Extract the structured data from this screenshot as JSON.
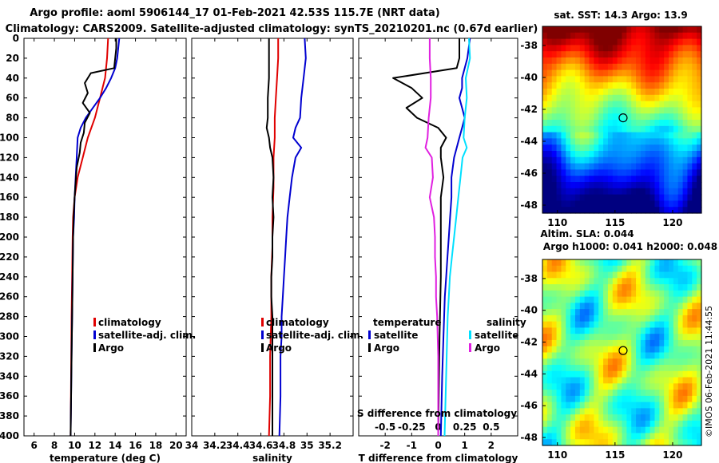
{
  "title_line1": "Argo profile: aoml 5906144_17 01-Feb-2021 42.53S 115.7E (NRT data)",
  "title_line2": "Climatology: CARS2009. Satellite-adjusted climatology: synTS_20210201.nc (0.67d earlier)",
  "colors": {
    "clim": "#e00000",
    "sat": "#0000d0",
    "argo": "#000000",
    "sat_s": "#00e0ff",
    "clim_s": "#e020e0"
  },
  "chart_data": [
    {
      "type": "line",
      "panel": "temperature",
      "xlabel": "temperature (deg C)",
      "xlim": [
        5,
        21
      ],
      "xticks": [
        "6",
        "8",
        "10",
        "12",
        "14",
        "16",
        "18",
        "20"
      ],
      "xtick_values": [
        6,
        8,
        10,
        12,
        14,
        16,
        18,
        20
      ],
      "ylim": [
        0,
        400
      ],
      "yticks": [
        "0",
        "20",
        "40",
        "60",
        "80",
        "100",
        "120",
        "140",
        "160",
        "180",
        "200",
        "220",
        "240",
        "260",
        "280",
        "300",
        "320",
        "340",
        "360",
        "380",
        "400"
      ],
      "ytick_values": [
        0,
        20,
        40,
        60,
        80,
        100,
        120,
        140,
        160,
        180,
        200,
        220,
        240,
        260,
        280,
        300,
        320,
        340,
        360,
        380,
        400
      ],
      "legend": [
        "climatology",
        "satellite-adj. clim.",
        "Argo"
      ],
      "series": [
        {
          "name": "climatology",
          "color_key": "clim",
          "x": [
            13.3,
            13.2,
            13.0,
            12.5,
            12.0,
            11.3,
            10.8,
            10.3,
            10.0,
            9.85,
            9.8,
            9.75,
            9.7,
            9.65,
            9.6
          ],
          "y": [
            0,
            20,
            40,
            60,
            80,
            100,
            120,
            140,
            160,
            180,
            200,
            240,
            280,
            340,
            400
          ]
        },
        {
          "name": "satellite-adj. clim.",
          "color_key": "sat",
          "x": [
            14.4,
            14.3,
            14.2,
            14.0,
            13.6,
            13.1,
            12.5,
            11.8,
            11.1,
            10.6,
            10.3,
            10.2,
            10.1,
            10.0,
            9.95,
            9.85,
            9.8,
            9.75,
            9.7,
            9.65,
            9.6
          ],
          "y": [
            0,
            10,
            20,
            30,
            40,
            50,
            60,
            70,
            80,
            90,
            100,
            120,
            140,
            160,
            180,
            200,
            240,
            280,
            320,
            360,
            400
          ]
        },
        {
          "name": "Argo",
          "color_key": "argo",
          "x": [
            14.1,
            14.1,
            14.0,
            13.9,
            11.6,
            11.0,
            11.3,
            10.8,
            11.5,
            11.0,
            10.9,
            10.6,
            10.5,
            10.2,
            10.1,
            10.0,
            9.9,
            9.85,
            9.8,
            9.75,
            9.7,
            9.65,
            9.6
          ],
          "y": [
            0,
            10,
            20,
            30,
            35,
            45,
            55,
            65,
            75,
            85,
            95,
            105,
            115,
            130,
            145,
            160,
            180,
            200,
            240,
            280,
            320,
            360,
            400
          ]
        }
      ]
    },
    {
      "type": "line",
      "panel": "salinity",
      "xlabel": "salinity",
      "xlim": [
        34.0,
        35.4
      ],
      "xticks": [
        "34",
        "34.2",
        "34.4",
        "34.6",
        "34.8",
        "35",
        "35.2"
      ],
      "xtick_values": [
        34.0,
        34.2,
        34.4,
        34.6,
        34.8,
        35.0,
        35.2
      ],
      "ylim": [
        0,
        400
      ],
      "legend": [
        "climatology",
        "satellite-adj. clim.",
        "Argo"
      ],
      "series": [
        {
          "name": "climatology",
          "color_key": "clim",
          "x": [
            34.75,
            34.75,
            34.74,
            34.73,
            34.72,
            34.72,
            34.71,
            34.71,
            34.7,
            34.7,
            34.69,
            34.69,
            34.68,
            34.68,
            34.67
          ],
          "y": [
            0,
            20,
            40,
            60,
            80,
            100,
            120,
            150,
            180,
            210,
            240,
            280,
            320,
            360,
            400
          ]
        },
        {
          "name": "satellite-adj. clim.",
          "color_key": "sat",
          "x": [
            34.98,
            34.99,
            34.97,
            34.95,
            34.94,
            34.9,
            34.88,
            34.95,
            34.9,
            34.87,
            34.85,
            34.83,
            34.82,
            34.81,
            34.8,
            34.79,
            34.78,
            34.78,
            34.77,
            34.77,
            34.76
          ],
          "y": [
            0,
            20,
            40,
            60,
            80,
            90,
            100,
            110,
            120,
            140,
            160,
            180,
            200,
            220,
            240,
            260,
            280,
            300,
            320,
            360,
            400
          ]
        },
        {
          "name": "Argo",
          "color_key": "argo",
          "x": [
            34.67,
            34.67,
            34.67,
            34.66,
            34.66,
            34.65,
            34.67,
            34.68,
            34.7,
            34.71,
            34.7,
            34.71,
            34.7,
            34.7,
            34.69,
            34.69,
            34.7,
            34.7,
            34.7,
            34.7,
            34.7,
            34.7
          ],
          "y": [
            0,
            20,
            40,
            60,
            80,
            90,
            100,
            110,
            120,
            140,
            160,
            180,
            200,
            220,
            240,
            260,
            280,
            300,
            320,
            340,
            370,
            400
          ]
        }
      ]
    },
    {
      "type": "line",
      "panel": "differences",
      "xlabel": "T difference from climatology",
      "xlabel_top": "S difference from climatology",
      "xlim": [
        -3,
        3
      ],
      "xticks": [
        "-2",
        "-1",
        "0",
        "1",
        "2"
      ],
      "xtick_values": [
        -2,
        -1,
        0,
        1,
        2
      ],
      "sticks": [
        "-0.5",
        "-0.25",
        "0",
        "0.25",
        "0.5"
      ],
      "stick_values": [
        -0.5,
        -0.25,
        0,
        0.25,
        0.5
      ],
      "ylim": [
        0,
        400
      ],
      "legend_t_title": "temperature",
      "legend_s_title": "salinity",
      "legend_t": [
        "satellite",
        "Argo"
      ],
      "legend_s": [
        "satellite",
        "Argo"
      ],
      "series": [
        {
          "name": "temperature satellite",
          "color_key": "sat",
          "x": [
            1.2,
            1.1,
            1.0,
            0.9,
            0.9,
            0.8,
            0.9,
            1.0,
            0.9,
            0.8,
            0.7,
            0.6,
            0.5,
            0.5,
            0.45,
            0.4,
            0.35,
            0.3,
            0.25,
            0.2,
            0.15,
            0.1
          ],
          "y": [
            0,
            20,
            30,
            40,
            50,
            60,
            70,
            80,
            90,
            100,
            110,
            120,
            140,
            160,
            180,
            200,
            220,
            240,
            260,
            300,
            340,
            400
          ]
        },
        {
          "name": "temperature Argo",
          "color_key": "argo",
          "x": [
            0.8,
            0.8,
            0.7,
            -1.7,
            -1.0,
            -0.6,
            -1.2,
            -0.8,
            0.0,
            0.3,
            0.1,
            0.1,
            0.2,
            0.1,
            0.1,
            0.1,
            0.1,
            0.05,
            0.0
          ],
          "y": [
            0,
            20,
            30,
            40,
            50,
            60,
            70,
            80,
            90,
            100,
            110,
            120,
            140,
            160,
            180,
            200,
            240,
            300,
            400
          ]
        },
        {
          "name": "salinity satellite",
          "color_key": "sat_s",
          "x": [
            0.29,
            0.3,
            0.26,
            0.27,
            0.25,
            0.24,
            0.27,
            0.23,
            0.21,
            0.19,
            0.17,
            0.15,
            0.13,
            0.11,
            0.1,
            0.09,
            0.08,
            0.07,
            0.06
          ],
          "y": [
            0,
            20,
            40,
            60,
            80,
            100,
            110,
            120,
            140,
            160,
            180,
            200,
            220,
            240,
            260,
            280,
            320,
            360,
            400
          ]
        },
        {
          "name": "salinity Argo",
          "color_key": "clim_s",
          "x": [
            -0.08,
            -0.08,
            -0.07,
            -0.07,
            -0.09,
            -0.1,
            -0.12,
            -0.06,
            -0.05,
            -0.08,
            -0.04,
            -0.03,
            -0.03,
            -0.02,
            -0.02,
            -0.01,
            0.0,
            0.0,
            0.0
          ],
          "y": [
            0,
            20,
            40,
            60,
            80,
            100,
            110,
            120,
            140,
            160,
            180,
            200,
            220,
            240,
            260,
            280,
            320,
            360,
            400
          ]
        }
      ]
    },
    {
      "type": "heatmap",
      "panel": "sst_map",
      "title": "sat. SST: 14.3 Argo: 13.9",
      "xticks": [
        "110",
        "115",
        "120"
      ],
      "xtick_values": [
        110,
        115,
        120
      ],
      "yticks": [
        "-38",
        "-40",
        "-42",
        "-44",
        "-46",
        "-48"
      ],
      "ytick_values": [
        -38,
        -40,
        -42,
        -44,
        -46,
        -48
      ],
      "xlim": [
        108.7,
        122.5
      ],
      "ylim": [
        -36.8,
        -48.5
      ],
      "marker": {
        "lon": 115.7,
        "lat": -42.53
      }
    },
    {
      "type": "heatmap",
      "panel": "sla_map",
      "title": "Altim. SLA: 0.044",
      "subtitle": "Argo h1000: 0.041 h2000: 0.048",
      "xticks": [
        "110",
        "115",
        "120"
      ],
      "xtick_values": [
        110,
        115,
        120
      ],
      "yticks": [
        "-38",
        "-40",
        "-42",
        "-44",
        "-46",
        "-48"
      ],
      "ytick_values": [
        -38,
        -40,
        -42,
        -44,
        -46,
        -48
      ],
      "xlim": [
        108.7,
        122.5
      ],
      "ylim": [
        -36.8,
        -48.5
      ],
      "marker": {
        "lon": 115.7,
        "lat": -42.53
      }
    }
  ],
  "stamp": "©IMOS 06-Feb-2021 11:44:55"
}
